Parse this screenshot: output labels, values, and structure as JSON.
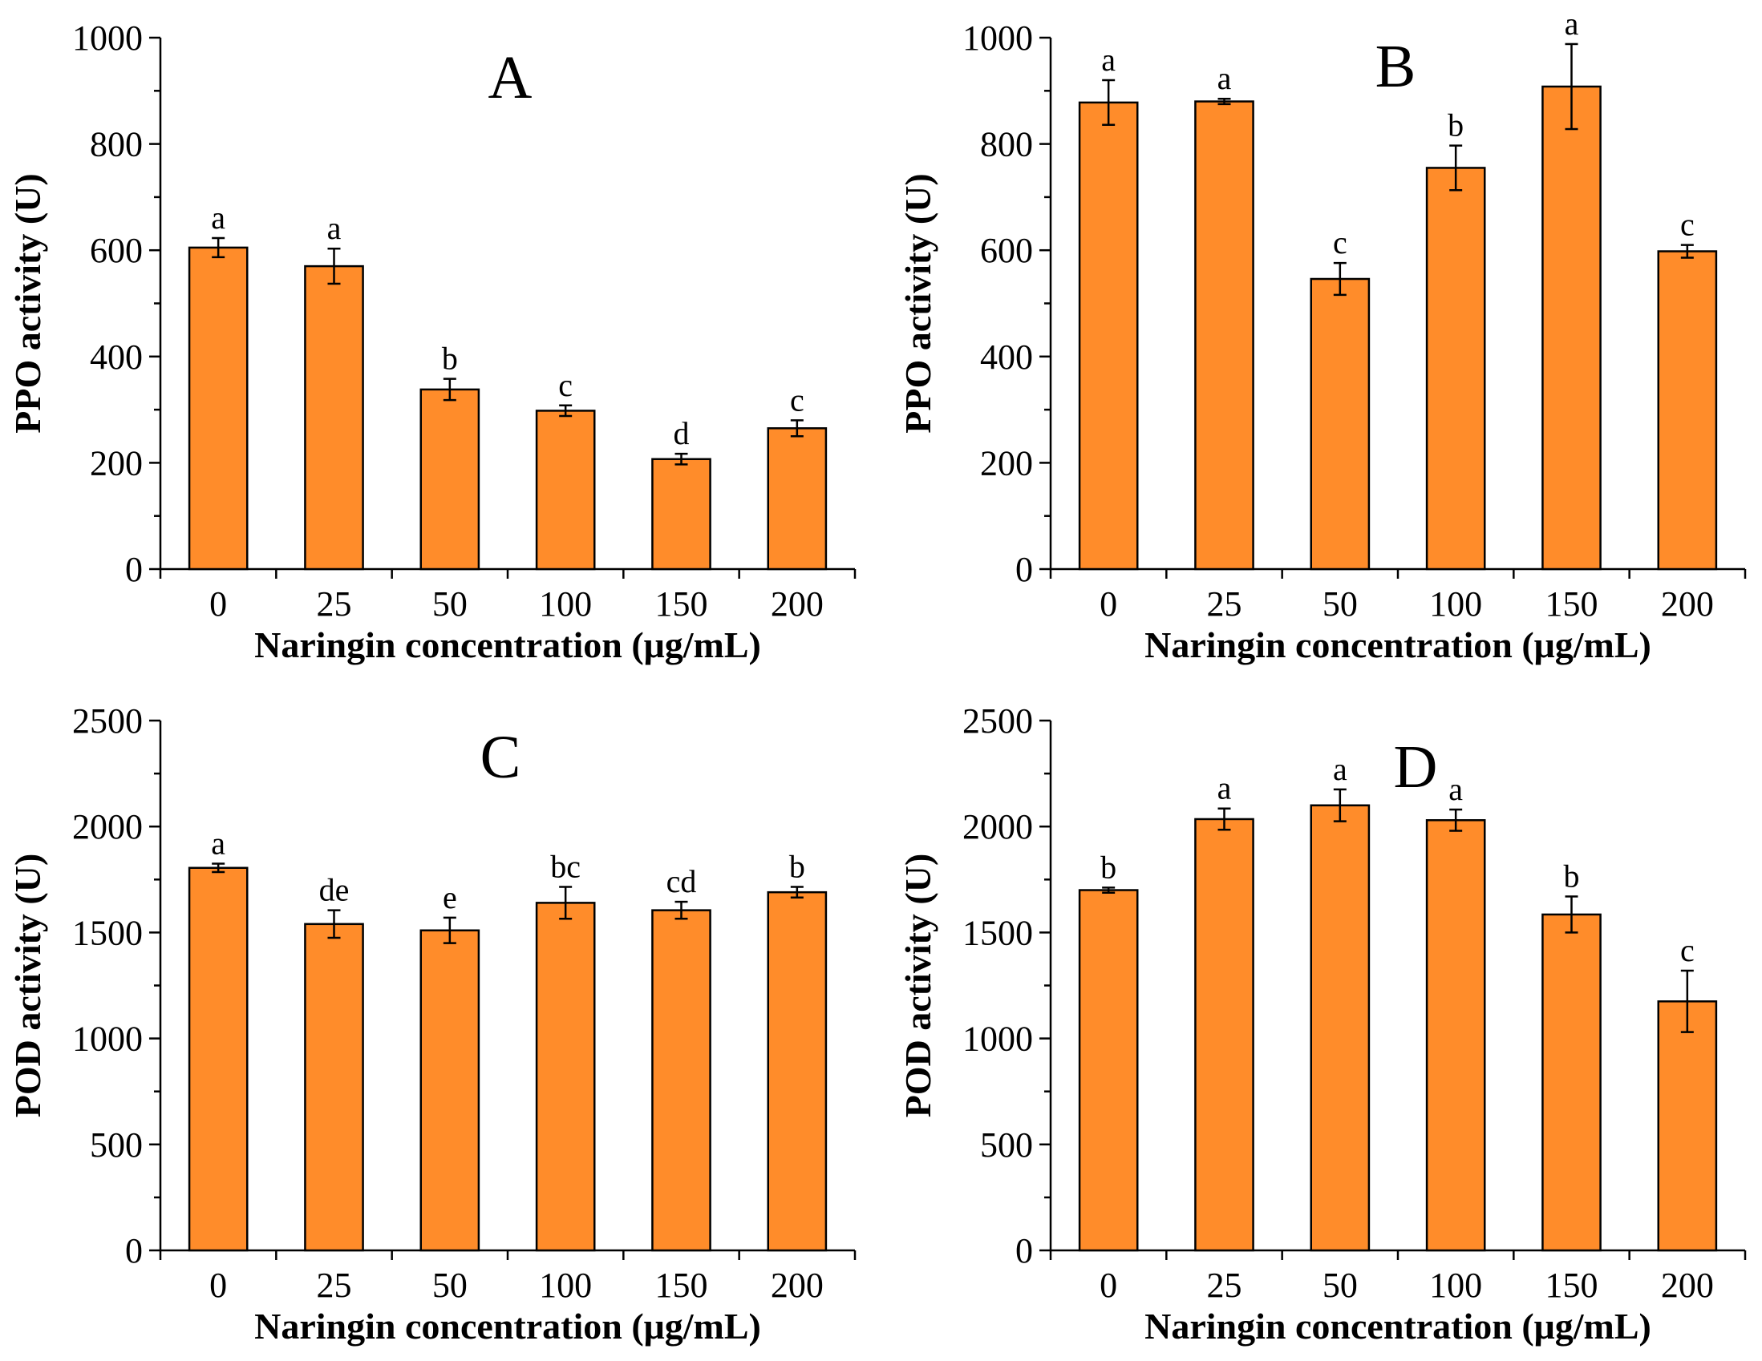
{
  "chart_data": [
    {
      "type": "bar",
      "panel": "A",
      "categories": [
        "0",
        "25",
        "50",
        "100",
        "150",
        "200"
      ],
      "values": [
        605,
        570,
        338,
        298,
        207,
        265
      ],
      "errors": [
        18,
        33,
        20,
        10,
        10,
        15
      ],
      "significance": [
        "a",
        "a",
        "b",
        "c",
        "d",
        "c"
      ],
      "xlabel": "Naringin concentration (μg/mL)",
      "ylabel": "PPO activity (U)",
      "ylim": [
        0,
        1000
      ],
      "yticks": [
        0,
        200,
        400,
        600,
        800,
        1000
      ],
      "color": "#FF8C2A"
    },
    {
      "type": "bar",
      "panel": "B",
      "categories": [
        "0",
        "25",
        "50",
        "100",
        "150",
        "200"
      ],
      "values": [
        878,
        880,
        546,
        755,
        908,
        598
      ],
      "errors": [
        42,
        5,
        30,
        42,
        80,
        12
      ],
      "significance": [
        "a",
        "a",
        "c",
        "b",
        "a",
        "c"
      ],
      "xlabel": "Naringin concentration (μg/mL)",
      "ylabel": "PPO activity (U)",
      "ylim": [
        0,
        1000
      ],
      "yticks": [
        0,
        200,
        400,
        600,
        800,
        1000
      ],
      "color": "#FF8C2A"
    },
    {
      "type": "bar",
      "panel": "C",
      "categories": [
        "0",
        "25",
        "50",
        "100",
        "150",
        "200"
      ],
      "values": [
        1805,
        1540,
        1510,
        1640,
        1605,
        1690
      ],
      "errors": [
        20,
        65,
        60,
        75,
        40,
        25
      ],
      "significance": [
        "a",
        "de",
        "e",
        "bc",
        "cd",
        "b"
      ],
      "xlabel": "Naringin concentration (μg/mL)",
      "ylabel": "POD activity (U)",
      "ylim": [
        0,
        2500
      ],
      "yticks": [
        0,
        500,
        1000,
        1500,
        2000,
        2500
      ],
      "color": "#FF8C2A"
    },
    {
      "type": "bar",
      "panel": "D",
      "categories": [
        "0",
        "25",
        "50",
        "100",
        "150",
        "200"
      ],
      "values": [
        1700,
        2035,
        2100,
        2030,
        1585,
        1175
      ],
      "errors": [
        12,
        50,
        75,
        50,
        85,
        145
      ],
      "significance": [
        "b",
        "a",
        "a",
        "a",
        "b",
        "c"
      ],
      "xlabel": "Naringin concentration (μg/mL)",
      "ylabel": "POD activity (U)",
      "ylim": [
        0,
        2500
      ],
      "yticks": [
        0,
        500,
        1000,
        1500,
        2000,
        2500
      ],
      "color": "#FF8C2A"
    }
  ]
}
